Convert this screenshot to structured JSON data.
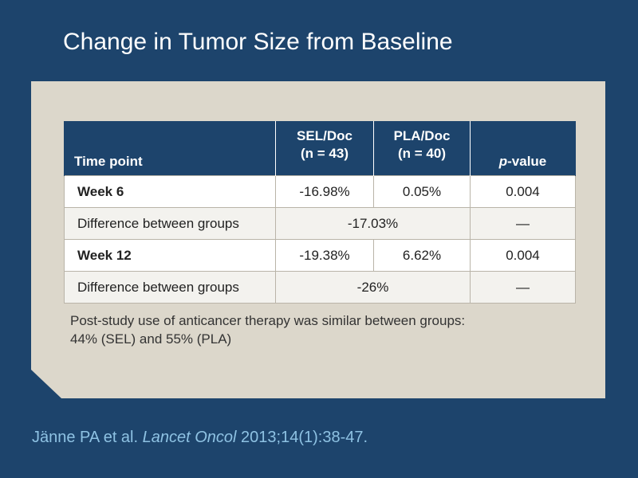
{
  "slide": {
    "title": "Change in Tumor Size from Baseline"
  },
  "table": {
    "headers": {
      "time_point": "Time point",
      "sel_doc_line1": "SEL/Doc",
      "sel_doc_line2": "(n = 43)",
      "pla_doc_line1": "PLA/Doc",
      "pla_doc_line2": "(n = 40)",
      "p_value_italic": "p",
      "p_value_rest": "-value"
    },
    "rows": [
      {
        "label": "Week 6",
        "sel_doc": "-16.98%",
        "pla_doc": "0.05%",
        "p_value": "0.004"
      },
      {
        "label": "Difference between groups",
        "difference": "-17.03%",
        "p_value": "—"
      },
      {
        "label": "Week 12",
        "sel_doc": "-19.38%",
        "pla_doc": "6.62%",
        "p_value": "0.004"
      },
      {
        "label": "Difference between groups",
        "difference": "-26%",
        "p_value": "—"
      }
    ]
  },
  "note": {
    "line1": "Post-study use of anticancer therapy was similar between groups:",
    "line2": "44% (SEL) and 55% (PLA)"
  },
  "citation": {
    "authors": "Jänne PA et al. ",
    "journal": "Lancet Oncol",
    "details": " 2013;14(1):38-47."
  },
  "colors": {
    "slide_background": "#1d446c",
    "panel_background": "#dcd7cb",
    "header_background": "#1d446c",
    "citation_text": "#8ec2e3"
  }
}
